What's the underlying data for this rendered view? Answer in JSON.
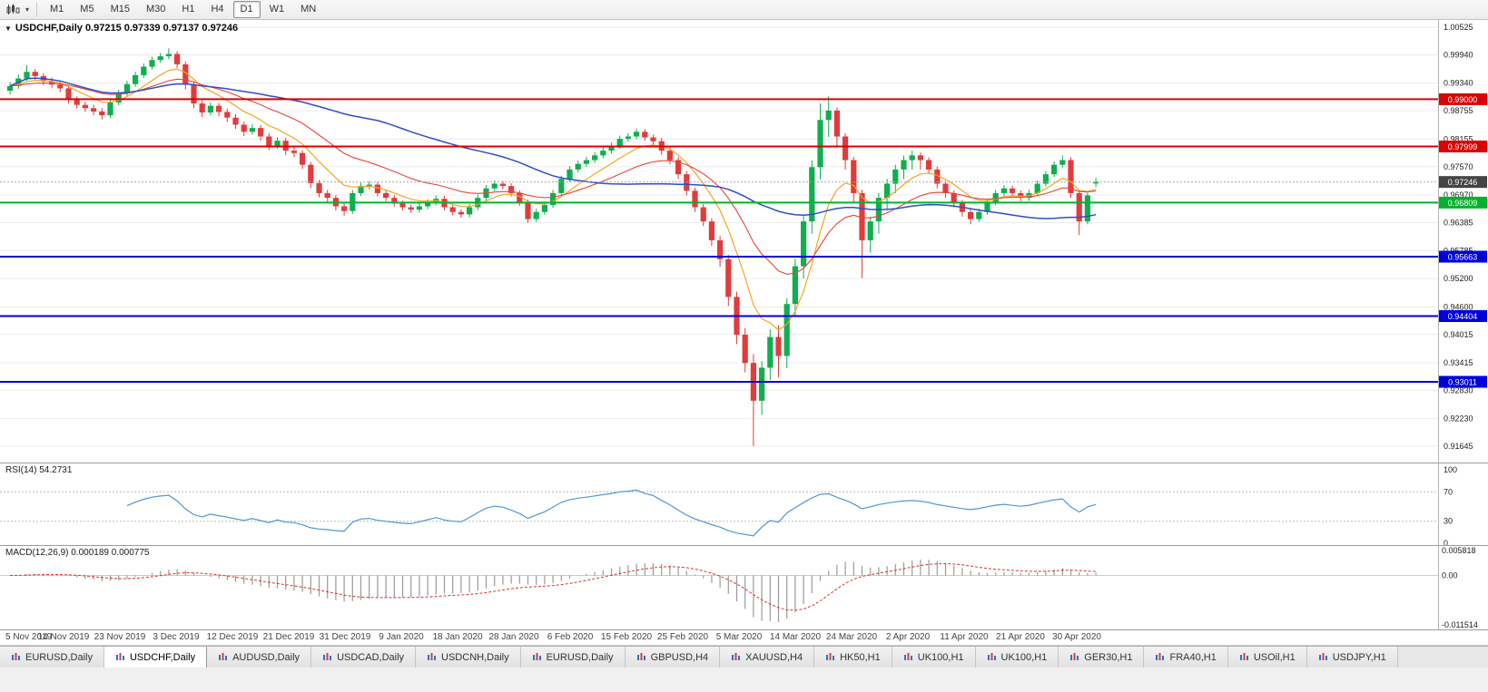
{
  "toolbar": {
    "timeframes": [
      "M1",
      "M5",
      "M15",
      "M30",
      "H1",
      "H4",
      "D1",
      "W1",
      "MN"
    ],
    "active_timeframe": "D1"
  },
  "chart": {
    "title": "USDCHF,Daily 0.97215 0.97339 0.97137 0.97246",
    "current_price": 0.97246,
    "current_price_label": "0.97246",
    "price_axis": {
      "labels": [
        "1.00525",
        "0.99940",
        "0.99340",
        "0.98755",
        "0.98155",
        "0.97570",
        "0.96970",
        "0.96385",
        "0.95785",
        "0.95200",
        "0.94600",
        "0.94015",
        "0.93415",
        "0.92830",
        "0.92230",
        "0.91645"
      ],
      "max": 1.0068,
      "min": 0.913
    },
    "hlines": [
      {
        "price": 0.99,
        "label": "0.99000",
        "color": "#dd0000"
      },
      {
        "price": 0.97999,
        "label": "0.97999",
        "color": "#dd0000"
      },
      {
        "price": 0.96809,
        "label": "0.96809",
        "color": "#00b32c"
      },
      {
        "price": 0.95663,
        "label": "0.95663",
        "color": "#0000dd"
      },
      {
        "price": 0.94404,
        "label": "0.94404",
        "color": "#0000dd"
      },
      {
        "price": 0.93011,
        "label": "0.93011",
        "color": "#0000dd"
      }
    ],
    "colors": {
      "up": "#0fae4e",
      "down": "#e23b3b",
      "ma_fast": "#f5a623",
      "ma_mid": "#e8453c",
      "ma_slow": "#2e4fc4",
      "rsi": "#4f96d8",
      "macd_signal": "#e03030",
      "macd_hist": "#9a9a9a",
      "current_badge": "#444444",
      "grid": "#ececec"
    }
  },
  "chart_data": {
    "type": "candlestick",
    "symbol": "USDCHF",
    "timeframe": "Daily",
    "title": "USDCHF,Daily",
    "x_labels": [
      "5 Nov 2019",
      "14 Nov 2019",
      "23 Nov 2019",
      "3 Dec 2019",
      "12 Dec 2019",
      "21 Dec 2019",
      "31 Dec 2019",
      "9 Jan 2020",
      "18 Jan 2020",
      "28 Jan 2020",
      "6 Feb 2020",
      "15 Feb 2020",
      "25 Feb 2020",
      "5 Mar 2020",
      "14 Mar 2020",
      "24 Mar 2020",
      "2 Apr 2020",
      "11 Apr 2020",
      "21 Apr 2020",
      "30 Apr 2020"
    ],
    "ylim": [
      0.913,
      1.0068
    ],
    "ohlc": [
      [
        0.9918,
        0.9936,
        0.991,
        0.9928
      ],
      [
        0.9928,
        0.9952,
        0.9922,
        0.9944
      ],
      [
        0.9944,
        0.9972,
        0.9938,
        0.9958
      ],
      [
        0.9958,
        0.9964,
        0.9941,
        0.9949
      ],
      [
        0.9949,
        0.9955,
        0.993,
        0.9938
      ],
      [
        0.9938,
        0.9946,
        0.9924,
        0.9931
      ],
      [
        0.9931,
        0.9938,
        0.9915,
        0.9923
      ],
      [
        0.9923,
        0.9928,
        0.9891,
        0.9899
      ],
      [
        0.9899,
        0.9906,
        0.988,
        0.9888
      ],
      [
        0.9888,
        0.9895,
        0.9873,
        0.9881
      ],
      [
        0.9881,
        0.9888,
        0.9866,
        0.9874
      ],
      [
        0.9874,
        0.9881,
        0.9857,
        0.9866
      ],
      [
        0.9866,
        0.99,
        0.986,
        0.9893
      ],
      [
        0.9893,
        0.992,
        0.9887,
        0.9913
      ],
      [
        0.9913,
        0.9939,
        0.9907,
        0.9932
      ],
      [
        0.9932,
        0.9958,
        0.9926,
        0.9951
      ],
      [
        0.9951,
        0.9976,
        0.9945,
        0.9969
      ],
      [
        0.9969,
        0.999,
        0.9963,
        0.9983
      ],
      [
        0.9983,
        0.9998,
        0.9977,
        0.9991
      ],
      [
        0.9991,
        1.0008,
        0.9985,
        0.9996
      ],
      [
        0.9996,
        1.0002,
        0.9966,
        0.9974
      ],
      [
        0.9974,
        0.998,
        0.9921,
        0.9931
      ],
      [
        0.9931,
        0.9938,
        0.9881,
        0.9891
      ],
      [
        0.9891,
        0.9898,
        0.9862,
        0.9872
      ],
      [
        0.9872,
        0.9893,
        0.9866,
        0.9886
      ],
      [
        0.9886,
        0.9892,
        0.9864,
        0.9873
      ],
      [
        0.9873,
        0.988,
        0.9852,
        0.9861
      ],
      [
        0.9861,
        0.9868,
        0.9837,
        0.9846
      ],
      [
        0.9846,
        0.9853,
        0.9822,
        0.9831
      ],
      [
        0.9831,
        0.9847,
        0.9825,
        0.9839
      ],
      [
        0.9839,
        0.9845,
        0.9812,
        0.9821
      ],
      [
        0.9821,
        0.9828,
        0.9792,
        0.9801
      ],
      [
        0.9801,
        0.9819,
        0.9795,
        0.9812
      ],
      [
        0.9812,
        0.9818,
        0.9782,
        0.9791
      ],
      [
        0.9791,
        0.9799,
        0.9777,
        0.9786
      ],
      [
        0.9786,
        0.9792,
        0.9752,
        0.9761
      ],
      [
        0.9761,
        0.9767,
        0.9712,
        0.9722
      ],
      [
        0.9722,
        0.9729,
        0.9692,
        0.9701
      ],
      [
        0.9701,
        0.9708,
        0.9682,
        0.9691
      ],
      [
        0.9691,
        0.9697,
        0.9664,
        0.9673
      ],
      [
        0.9673,
        0.9679,
        0.9653,
        0.9663
      ],
      [
        0.9663,
        0.9708,
        0.9657,
        0.9701
      ],
      [
        0.9701,
        0.9723,
        0.9695,
        0.9716
      ],
      [
        0.9716,
        0.9726,
        0.9709,
        0.9719
      ],
      [
        0.9719,
        0.9725,
        0.9694,
        0.9701
      ],
      [
        0.9701,
        0.9707,
        0.9684,
        0.9691
      ],
      [
        0.9691,
        0.9697,
        0.9672,
        0.9679
      ],
      [
        0.9679,
        0.9685,
        0.9664,
        0.9671
      ],
      [
        0.9671,
        0.9677,
        0.9659,
        0.9666
      ],
      [
        0.9666,
        0.968,
        0.966,
        0.9673
      ],
      [
        0.9673,
        0.9688,
        0.9667,
        0.9681
      ],
      [
        0.9681,
        0.9696,
        0.9675,
        0.9689
      ],
      [
        0.9689,
        0.9695,
        0.9664,
        0.9671
      ],
      [
        0.9671,
        0.9677,
        0.9654,
        0.9661
      ],
      [
        0.9661,
        0.9667,
        0.9649,
        0.9656
      ],
      [
        0.9656,
        0.9678,
        0.965,
        0.9671
      ],
      [
        0.9671,
        0.9698,
        0.9665,
        0.9691
      ],
      [
        0.9691,
        0.9718,
        0.9685,
        0.9711
      ],
      [
        0.9711,
        0.9728,
        0.9705,
        0.9721
      ],
      [
        0.9721,
        0.9727,
        0.9709,
        0.9716
      ],
      [
        0.9716,
        0.9722,
        0.9694,
        0.9701
      ],
      [
        0.9701,
        0.9707,
        0.9674,
        0.9681
      ],
      [
        0.9681,
        0.9687,
        0.9638,
        0.9646
      ],
      [
        0.9646,
        0.9668,
        0.964,
        0.9661
      ],
      [
        0.9661,
        0.9683,
        0.9655,
        0.9676
      ],
      [
        0.9676,
        0.9708,
        0.967,
        0.9701
      ],
      [
        0.9701,
        0.9738,
        0.9695,
        0.9731
      ],
      [
        0.9731,
        0.9758,
        0.9725,
        0.9751
      ],
      [
        0.9751,
        0.977,
        0.9745,
        0.9763
      ],
      [
        0.9763,
        0.9778,
        0.9757,
        0.9771
      ],
      [
        0.9771,
        0.9788,
        0.9765,
        0.9781
      ],
      [
        0.9781,
        0.9798,
        0.9775,
        0.9791
      ],
      [
        0.9791,
        0.9808,
        0.9785,
        0.9801
      ],
      [
        0.9801,
        0.9823,
        0.9795,
        0.9816
      ],
      [
        0.9816,
        0.9828,
        0.981,
        0.9821
      ],
      [
        0.9821,
        0.9838,
        0.9815,
        0.9831
      ],
      [
        0.9831,
        0.9837,
        0.9812,
        0.9819
      ],
      [
        0.9819,
        0.9825,
        0.9804,
        0.9811
      ],
      [
        0.9811,
        0.9818,
        0.9782,
        0.9791
      ],
      [
        0.9791,
        0.9798,
        0.9762,
        0.9771
      ],
      [
        0.9771,
        0.9778,
        0.9731,
        0.9741
      ],
      [
        0.9741,
        0.9748,
        0.9696,
        0.9706
      ],
      [
        0.9706,
        0.9713,
        0.9661,
        0.9671
      ],
      [
        0.9671,
        0.9678,
        0.9631,
        0.9641
      ],
      [
        0.9641,
        0.9648,
        0.9589,
        0.9601
      ],
      [
        0.9601,
        0.961,
        0.9545,
        0.9561
      ],
      [
        0.9561,
        0.957,
        0.9462,
        0.9481
      ],
      [
        0.9481,
        0.9492,
        0.9381,
        0.9401
      ],
      [
        0.9401,
        0.9415,
        0.9321,
        0.9341
      ],
      [
        0.9341,
        0.936,
        0.9165,
        0.9261
      ],
      [
        0.9261,
        0.9345,
        0.9231,
        0.9331
      ],
      [
        0.9331,
        0.9412,
        0.9305,
        0.9396
      ],
      [
        0.9396,
        0.9421,
        0.9311,
        0.9356
      ],
      [
        0.9356,
        0.9478,
        0.933,
        0.9466
      ],
      [
        0.9466,
        0.9562,
        0.944,
        0.9546
      ],
      [
        0.9546,
        0.9655,
        0.952,
        0.9641
      ],
      [
        0.9641,
        0.977,
        0.9615,
        0.9756
      ],
      [
        0.9756,
        0.9891,
        0.973,
        0.9856
      ],
      [
        0.9856,
        0.9906,
        0.982,
        0.9876
      ],
      [
        0.9876,
        0.9883,
        0.9801,
        0.9821
      ],
      [
        0.9821,
        0.9828,
        0.9751,
        0.9771
      ],
      [
        0.9771,
        0.9778,
        0.9681,
        0.9701
      ],
      [
        0.9701,
        0.9708,
        0.9521,
        0.9601
      ],
      [
        0.9601,
        0.9651,
        0.9575,
        0.9641
      ],
      [
        0.9641,
        0.9701,
        0.9615,
        0.9691
      ],
      [
        0.9691,
        0.9731,
        0.9665,
        0.9721
      ],
      [
        0.9721,
        0.9761,
        0.9701,
        0.9751
      ],
      [
        0.9751,
        0.9781,
        0.9731,
        0.9771
      ],
      [
        0.9771,
        0.9791,
        0.9751,
        0.9781
      ],
      [
        0.9781,
        0.9787,
        0.9751,
        0.9771
      ],
      [
        0.9771,
        0.9777,
        0.9741,
        0.9751
      ],
      [
        0.9751,
        0.9757,
        0.9711,
        0.9721
      ],
      [
        0.9721,
        0.9727,
        0.9691,
        0.9701
      ],
      [
        0.9701,
        0.9707,
        0.9671,
        0.9681
      ],
      [
        0.9681,
        0.9687,
        0.9651,
        0.9661
      ],
      [
        0.9661,
        0.9667,
        0.9635,
        0.9646
      ],
      [
        0.9646,
        0.9668,
        0.964,
        0.9661
      ],
      [
        0.9661,
        0.9688,
        0.9655,
        0.9681
      ],
      [
        0.9681,
        0.9708,
        0.9675,
        0.9701
      ],
      [
        0.9701,
        0.9718,
        0.9695,
        0.9711
      ],
      [
        0.9711,
        0.9717,
        0.9694,
        0.9701
      ],
      [
        0.9701,
        0.9707,
        0.9684,
        0.9691
      ],
      [
        0.9691,
        0.9708,
        0.9685,
        0.9701
      ],
      [
        0.9701,
        0.9728,
        0.9695,
        0.9721
      ],
      [
        0.9721,
        0.9748,
        0.9715,
        0.9741
      ],
      [
        0.9741,
        0.9768,
        0.9735,
        0.9761
      ],
      [
        0.9761,
        0.9781,
        0.9755,
        0.9771
      ],
      [
        0.9771,
        0.9777,
        0.9691,
        0.9701
      ],
      [
        0.9701,
        0.9707,
        0.9612,
        0.9641
      ],
      [
        0.9641,
        0.9702,
        0.9635,
        0.9696
      ],
      [
        0.97215,
        0.97339,
        0.97137,
        0.97246
      ]
    ]
  },
  "indicators": {
    "rsi": {
      "label": "RSI(14) 54.2731",
      "period": 14,
      "axis_labels": [
        "100",
        "70",
        "30",
        "0"
      ],
      "axis_values": [
        100,
        70,
        30,
        0
      ],
      "level_lines": [
        70,
        30
      ]
    },
    "macd": {
      "label": "MACD(12,26,9) 0.000189 0.000775",
      "fast": 12,
      "slow": 26,
      "signal": 9,
      "axis_labels": [
        "0.005818",
        "0.00",
        "-0.011514"
      ],
      "axis_max": 0.005818,
      "axis_min": -0.011514
    }
  },
  "tabs": {
    "items": [
      "EURUSD,Daily",
      "USDCHF,Daily",
      "AUDUSD,Daily",
      "USDCAD,Daily",
      "USDCNH,Daily",
      "EURUSD,Daily",
      "GBPUSD,H4",
      "XAUUSD,H4",
      "HK50,H1",
      "UK100,H1",
      "UK100,H1",
      "GER30,H1",
      "FRA40,H1",
      "USOil,H1",
      "USDJPY,H1"
    ],
    "active_index": 1
  }
}
